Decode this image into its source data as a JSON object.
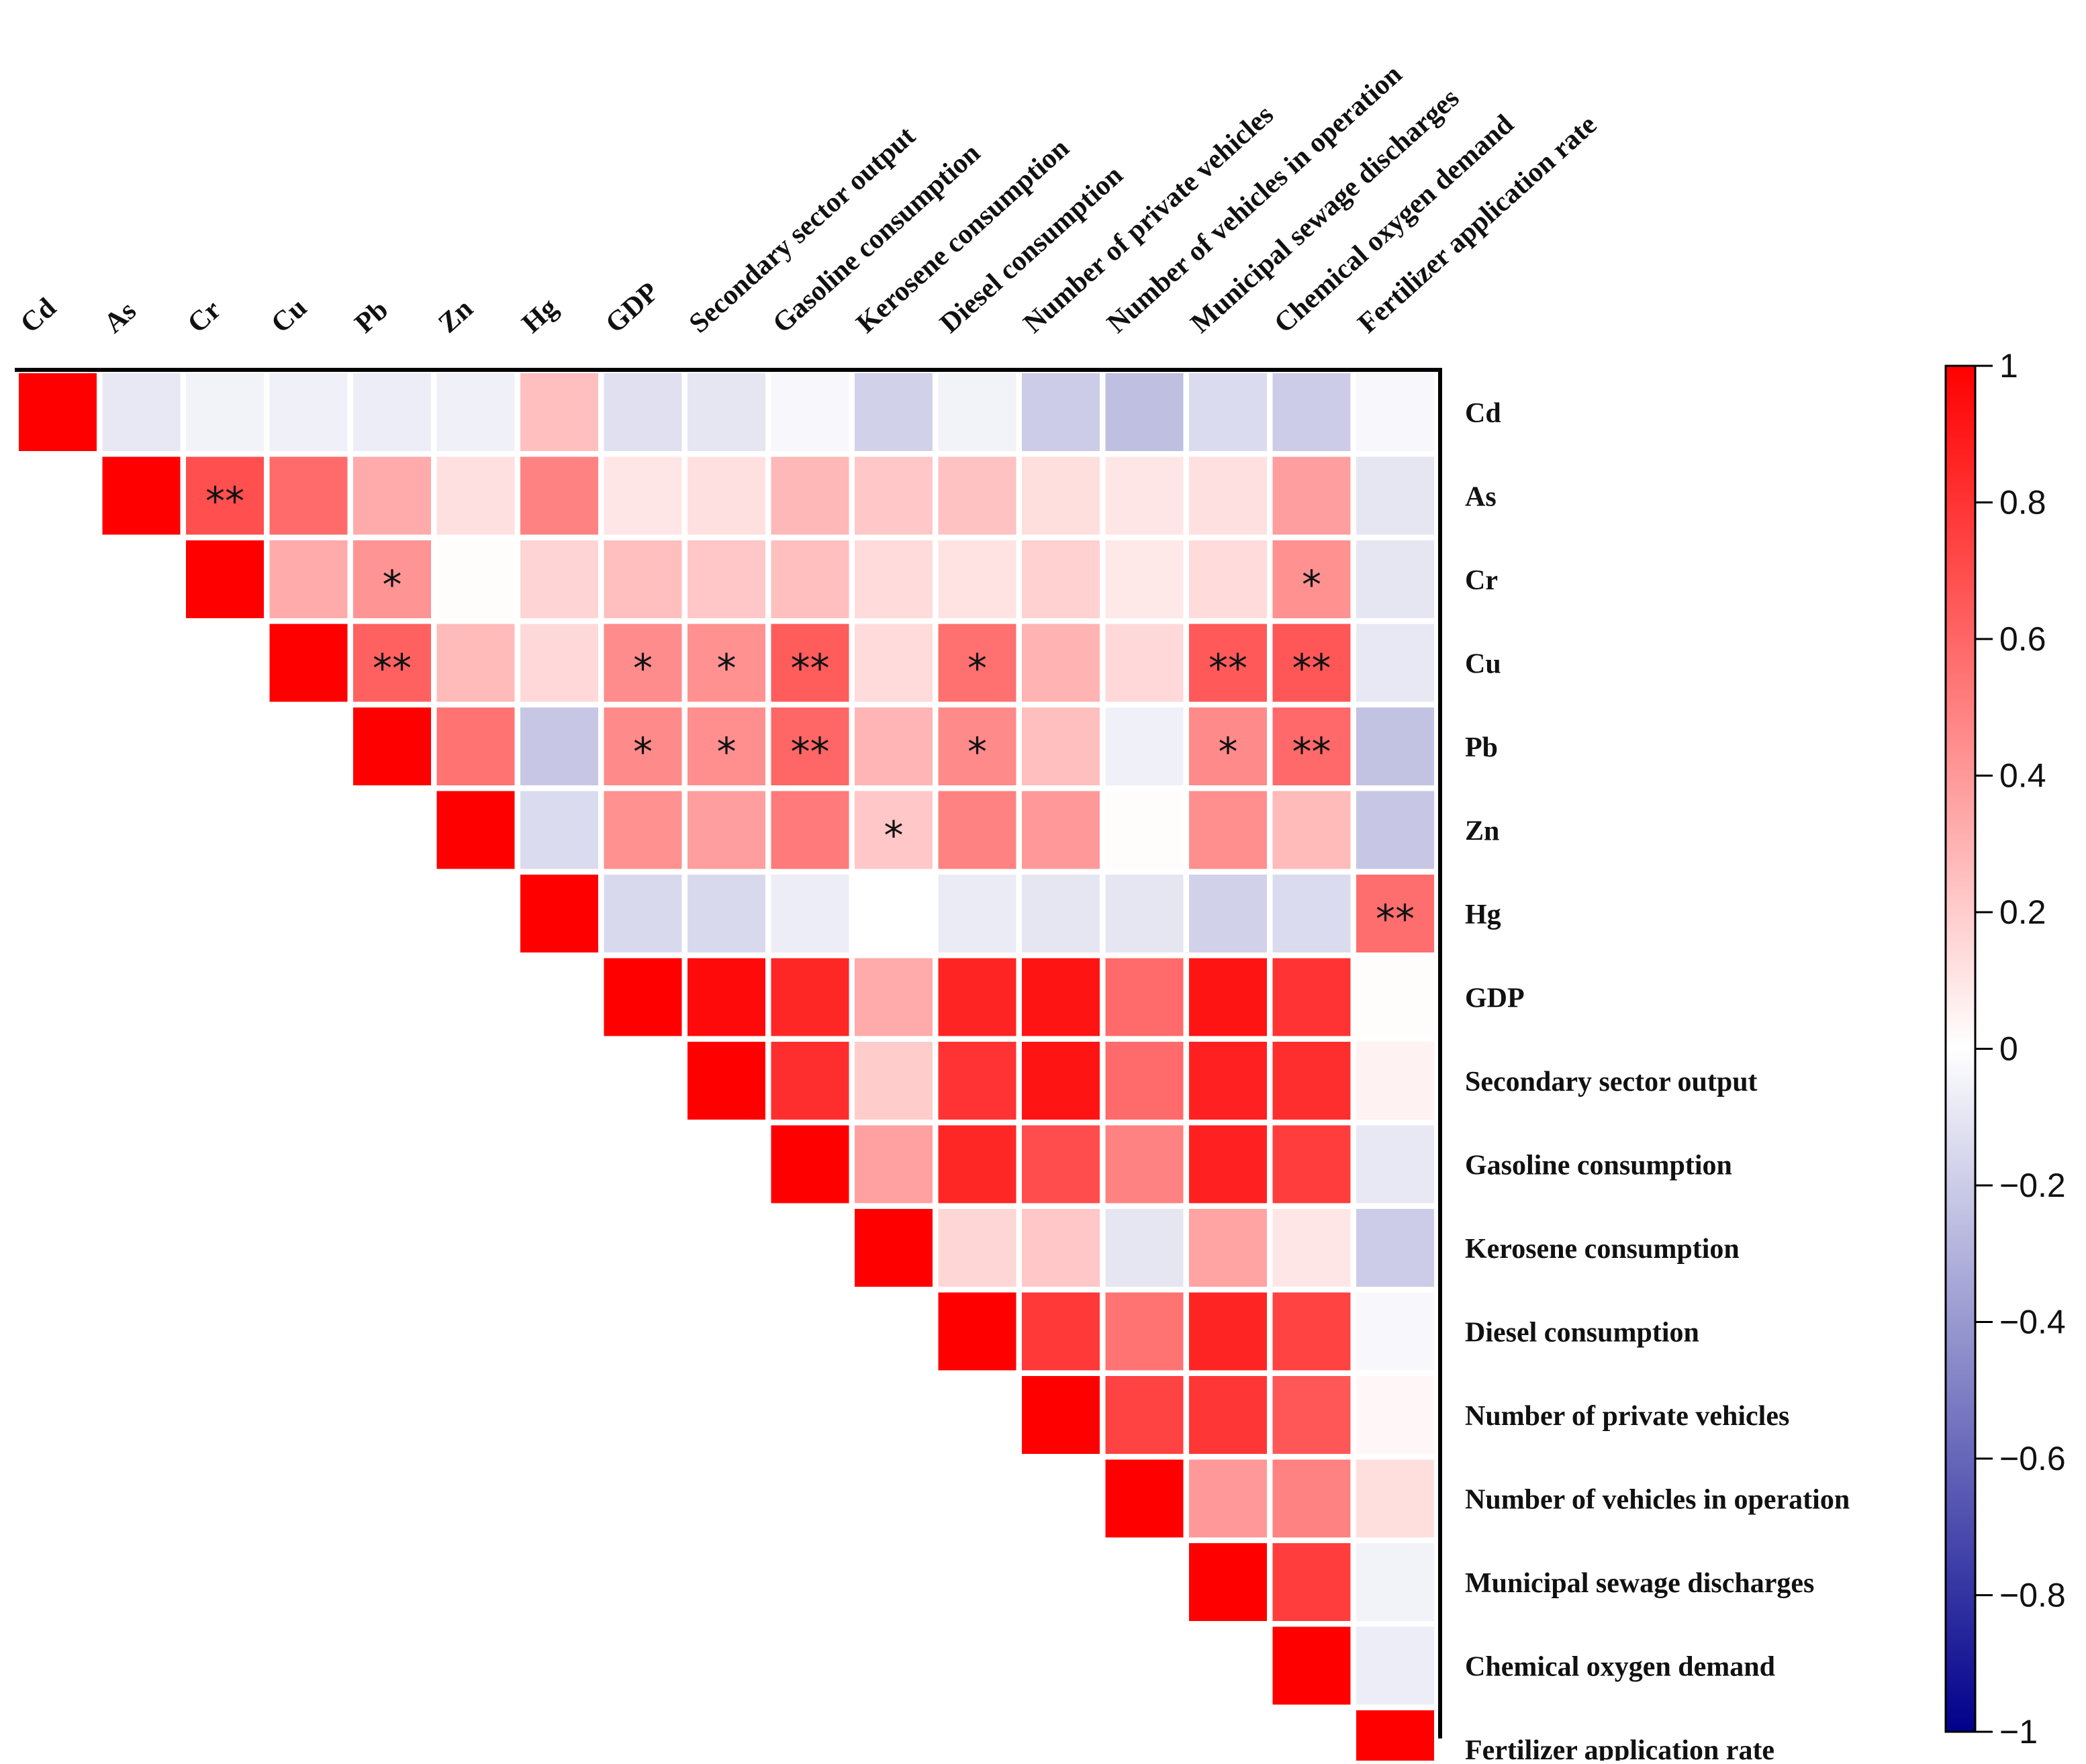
{
  "chart_data": {
    "type": "heatmap",
    "title": "",
    "variables": [
      "Cd",
      "As",
      "Cr",
      "Cu",
      "Pb",
      "Zn",
      "Hg",
      "GDP",
      "Secondary sector output",
      "Gasoline consumption",
      "Kerosene consumption",
      "Diesel consumption",
      "Number of private vehicles",
      "Number of vehicles in operation",
      "Municipal sewage discharges",
      "Chemical oxygen demand",
      "Fertilizer application rate"
    ],
    "layout": "upper-triangle",
    "matrix": [
      [
        1,
        -0.09,
        -0.05,
        -0.06,
        -0.07,
        -0.06,
        0.25,
        -0.12,
        -0.1,
        -0.03,
        -0.18,
        -0.05,
        -0.2,
        -0.25,
        -0.14,
        -0.2,
        -0.03
      ],
      [
        null,
        1,
        0.69,
        0.58,
        0.33,
        0.12,
        0.49,
        0.1,
        0.12,
        0.28,
        0.22,
        0.24,
        0.13,
        0.1,
        0.12,
        0.38,
        -0.1
      ],
      [
        null,
        null,
        1,
        0.33,
        0.42,
        0.01,
        0.17,
        0.25,
        0.22,
        0.25,
        0.14,
        0.11,
        0.18,
        0.09,
        0.14,
        0.43,
        -0.1
      ],
      [
        null,
        null,
        null,
        1,
        0.62,
        0.27,
        0.15,
        0.45,
        0.43,
        0.64,
        0.14,
        0.56,
        0.3,
        0.15,
        0.65,
        0.66,
        -0.09
      ],
      [
        null,
        null,
        null,
        null,
        1,
        0.55,
        -0.22,
        0.46,
        0.44,
        0.6,
        0.29,
        0.46,
        0.25,
        -0.06,
        0.46,
        0.59,
        -0.24
      ],
      [
        null,
        null,
        null,
        null,
        null,
        1,
        -0.14,
        0.43,
        0.38,
        0.52,
        0.22,
        0.49,
        0.4,
        0.01,
        0.44,
        0.27,
        -0.22
      ],
      [
        null,
        null,
        null,
        null,
        null,
        null,
        1,
        -0.15,
        -0.15,
        -0.07,
        0.0,
        -0.08,
        -0.1,
        -0.1,
        -0.18,
        -0.14,
        0.57
      ],
      [
        null,
        null,
        null,
        null,
        null,
        null,
        null,
        1,
        0.96,
        0.85,
        0.33,
        0.86,
        0.92,
        0.58,
        0.92,
        0.8,
        0.01
      ],
      [
        null,
        null,
        null,
        null,
        null,
        null,
        null,
        null,
        1,
        0.82,
        0.2,
        0.8,
        0.92,
        0.58,
        0.87,
        0.82,
        0.05
      ],
      [
        null,
        null,
        null,
        null,
        null,
        null,
        null,
        null,
        null,
        1,
        0.37,
        0.85,
        0.7,
        0.49,
        0.87,
        0.76,
        -0.09
      ],
      [
        null,
        null,
        null,
        null,
        null,
        null,
        null,
        null,
        null,
        null,
        1,
        0.16,
        0.22,
        -0.1,
        0.36,
        0.1,
        -0.2
      ],
      [
        null,
        null,
        null,
        null,
        null,
        null,
        null,
        null,
        null,
        null,
        null,
        1,
        0.78,
        0.55,
        0.86,
        0.74,
        -0.03
      ],
      [
        null,
        null,
        null,
        null,
        null,
        null,
        null,
        null,
        null,
        null,
        null,
        null,
        1,
        0.74,
        0.79,
        0.66,
        0.03
      ],
      [
        null,
        null,
        null,
        null,
        null,
        null,
        null,
        null,
        null,
        null,
        null,
        null,
        null,
        1,
        0.4,
        0.49,
        0.13
      ],
      [
        null,
        null,
        null,
        null,
        null,
        null,
        null,
        null,
        null,
        null,
        null,
        null,
        null,
        null,
        1,
        0.76,
        -0.05
      ],
      [
        null,
        null,
        null,
        null,
        null,
        null,
        null,
        null,
        null,
        null,
        null,
        null,
        null,
        null,
        null,
        1,
        -0.07
      ],
      [
        null,
        null,
        null,
        null,
        null,
        null,
        null,
        null,
        null,
        null,
        null,
        null,
        null,
        null,
        null,
        null,
        1
      ]
    ],
    "significance": [
      {
        "row": "As",
        "col": "Cr",
        "mark": "**"
      },
      {
        "row": "Cr",
        "col": "Pb",
        "mark": "*"
      },
      {
        "row": "Cr",
        "col": "Chemical oxygen demand",
        "mark": "*"
      },
      {
        "row": "Cu",
        "col": "Pb",
        "mark": "**"
      },
      {
        "row": "Cu",
        "col": "GDP",
        "mark": "*"
      },
      {
        "row": "Cu",
        "col": "Secondary sector output",
        "mark": "*"
      },
      {
        "row": "Cu",
        "col": "Gasoline consumption",
        "mark": "**"
      },
      {
        "row": "Cu",
        "col": "Diesel consumption",
        "mark": "*"
      },
      {
        "row": "Cu",
        "col": "Municipal sewage discharges",
        "mark": "**"
      },
      {
        "row": "Cu",
        "col": "Chemical oxygen demand",
        "mark": "**"
      },
      {
        "row": "Pb",
        "col": "GDP",
        "mark": "*"
      },
      {
        "row": "Pb",
        "col": "Secondary sector output",
        "mark": "*"
      },
      {
        "row": "Pb",
        "col": "Gasoline consumption",
        "mark": "**"
      },
      {
        "row": "Pb",
        "col": "Diesel consumption",
        "mark": "*"
      },
      {
        "row": "Pb",
        "col": "Municipal sewage discharges",
        "mark": "*"
      },
      {
        "row": "Pb",
        "col": "Chemical oxygen demand",
        "mark": "**"
      },
      {
        "row": "Zn",
        "col": "Kerosene consumption",
        "mark": "*"
      },
      {
        "row": "Hg",
        "col": "Fertilizer application rate",
        "mark": "**"
      }
    ],
    "colorbar": {
      "range": [
        -1,
        1
      ],
      "ticks": [
        1,
        0.8,
        0.6,
        0.4,
        0.2,
        0,
        -0.2,
        -0.4,
        -0.6,
        -0.8,
        -1
      ],
      "tick_labels": [
        "1",
        "0.8",
        "0.6",
        "0.4",
        "0.2",
        "0",
        "−0.2",
        "−0.4",
        "−0.6",
        "−0.8",
        "−1"
      ],
      "colors": {
        "negative": "#00008b",
        "zero": "#ffffff",
        "positive": "#ff0000"
      }
    }
  }
}
